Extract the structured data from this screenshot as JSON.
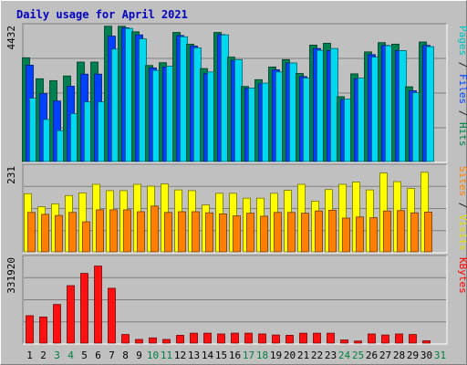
{
  "chart_data": {
    "type": "bar",
    "title": "Daily usage for April 2021",
    "days": [
      "1",
      "2",
      "3",
      "4",
      "5",
      "6",
      "7",
      "8",
      "9",
      "10",
      "11",
      "12",
      "13",
      "14",
      "15",
      "16",
      "17",
      "18",
      "19",
      "20",
      "21",
      "22",
      "23",
      "24",
      "25",
      "26",
      "27",
      "28",
      "29",
      "30",
      "31"
    ],
    "weekend_days": [
      "3",
      "4",
      "10",
      "11",
      "17",
      "18",
      "24",
      "25",
      "31"
    ],
    "panels": [
      {
        "name": "hits",
        "max_label": "4432",
        "ymax": 4432,
        "right_label": [
          "Pages",
          " / ",
          "Files",
          " / ",
          "Hits"
        ],
        "right_label_colors": [
          "#00c0c0",
          "#202020",
          "#0040ff",
          "#202020",
          "#008040"
        ],
        "series": [
          {
            "name": "Hits",
            "color": "#008050",
            "values": [
              3360,
              2680,
              2620,
              2770,
              3220,
              3220,
              4380,
              4380,
              4200,
              3110,
              3200,
              4180,
              3800,
              3010,
              4180,
              3380,
              2430,
              2650,
              3060,
              3300,
              2850,
              3770,
              3830,
              2100,
              2840,
              3550,
              3850,
              3800,
              2420,
              3870,
              0
            ]
          },
          {
            "name": "Files",
            "color": "#0040ff",
            "values": [
              3120,
              2200,
              1960,
              2440,
              2830,
              2830,
              4060,
              4330,
              4100,
              3030,
              3060,
              4080,
              3740,
              2850,
              4110,
              3280,
              2370,
              2520,
              2970,
              3190,
              2750,
              3660,
              3590,
              2010,
              2680,
              3460,
              3760,
              3590,
              2290,
              3760,
              0
            ]
          },
          {
            "name": "Pages",
            "color": "#00d8f0",
            "values": [
              2050,
              1360,
              1000,
              1550,
              1930,
              1930,
              3640,
              4310,
              3970,
              2950,
              3090,
              4040,
              3680,
              2900,
              4100,
              3300,
              2380,
              2540,
              2900,
              3190,
              2700,
              3600,
              3660,
              2020,
              2700,
              3380,
              3750,
              3590,
              2230,
              3720,
              0
            ]
          }
        ]
      },
      {
        "name": "visits",
        "max_label": "231",
        "ymax": 231,
        "right_label": [
          "Sites",
          " / ",
          "Visits"
        ],
        "right_label_colors": [
          "#ff8000",
          "#202020",
          "#e0e000"
        ],
        "series": [
          {
            "name": "Visits",
            "color": "#ffff00",
            "values": [
              155,
              120,
              128,
              150,
              157,
              180,
              163,
              163,
              180,
              175,
              181,
              165,
              163,
              125,
              156,
              156,
              143,
              143,
              156,
              164,
              180,
              135,
              166,
              180,
              186,
              165,
              210,
              187,
              169,
              212,
              0
            ]
          },
          {
            "name": "Sites",
            "color": "#ff8000",
            "values": [
              105,
              100,
              97,
              105,
              80,
              112,
              112,
              112,
              107,
              122,
              105,
              107,
              107,
              104,
              101,
              96,
              103,
              95,
              105,
              105,
              103,
              109,
              111,
              90,
              93,
              91,
              109,
              110,
              104,
              106,
              0
            ]
          }
        ]
      },
      {
        "name": "kbytes",
        "max_label": "331920",
        "ymax": 331920,
        "right_label": [
          "KBytes"
        ],
        "right_label_colors": [
          "#ff0000"
        ],
        "series": [
          {
            "name": "KBytes",
            "color": "#ff1010",
            "values": [
              105000,
              100000,
              148000,
              220000,
              267000,
              295000,
              210000,
              33000,
              14000,
              20000,
              14000,
              30000,
              38000,
              38000,
              35000,
              38000,
              38000,
              35000,
              31000,
              30000,
              38000,
              38000,
              38000,
              12000,
              8000,
              35000,
              31000,
              35000,
              33000,
              9000,
              0
            ]
          }
        ]
      }
    ]
  }
}
